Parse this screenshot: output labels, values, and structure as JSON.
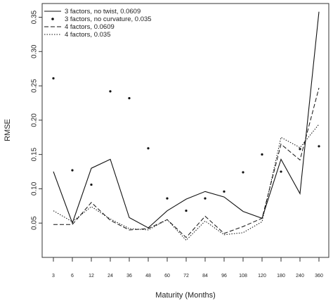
{
  "chart_data": {
    "type": "line",
    "xlabel": "Maturity (Months)",
    "ylabel": "RMSE",
    "categories": [
      "3",
      "6",
      "12",
      "24",
      "36",
      "48",
      "60",
      "72",
      "84",
      "96",
      "108",
      "120",
      "180",
      "240",
      "360"
    ],
    "ylim": [
      0.0,
      0.37
    ],
    "yticks": [
      0.05,
      0.1,
      0.15,
      0.2,
      0.25,
      0.3,
      0.35
    ],
    "ytick_labels": [
      "0.05",
      "0.10",
      "0.15",
      "0.20",
      "0.25",
      "0.30",
      "0.35"
    ],
    "legend_position": "top-left",
    "grid": false,
    "series": [
      {
        "name": "3 factors, no twist, 0.0609",
        "style": "solid",
        "values": [
          0.125,
          0.05,
          0.13,
          0.143,
          0.058,
          0.043,
          0.068,
          0.085,
          0.096,
          0.088,
          0.067,
          0.057,
          0.143,
          0.093,
          0.358
        ]
      },
      {
        "name": "3 factors, no curvature, 0.035",
        "style": "points",
        "values": [
          0.261,
          0.127,
          0.106,
          0.242,
          0.232,
          0.159,
          0.086,
          0.068,
          0.086,
          0.096,
          0.124,
          0.15,
          0.125,
          0.158,
          0.162
        ]
      },
      {
        "name": "4 factors, 0.0609",
        "style": "dashed",
        "values": [
          0.048,
          0.048,
          0.08,
          0.054,
          0.04,
          0.042,
          0.055,
          0.029,
          0.06,
          0.035,
          0.045,
          0.057,
          0.165,
          0.142,
          0.247
        ]
      },
      {
        "name": "4 factors, 0.035",
        "style": "dotted",
        "values": [
          0.068,
          0.052,
          0.074,
          0.056,
          0.042,
          0.04,
          0.055,
          0.025,
          0.053,
          0.033,
          0.036,
          0.052,
          0.175,
          0.16,
          0.194
        ]
      }
    ]
  }
}
